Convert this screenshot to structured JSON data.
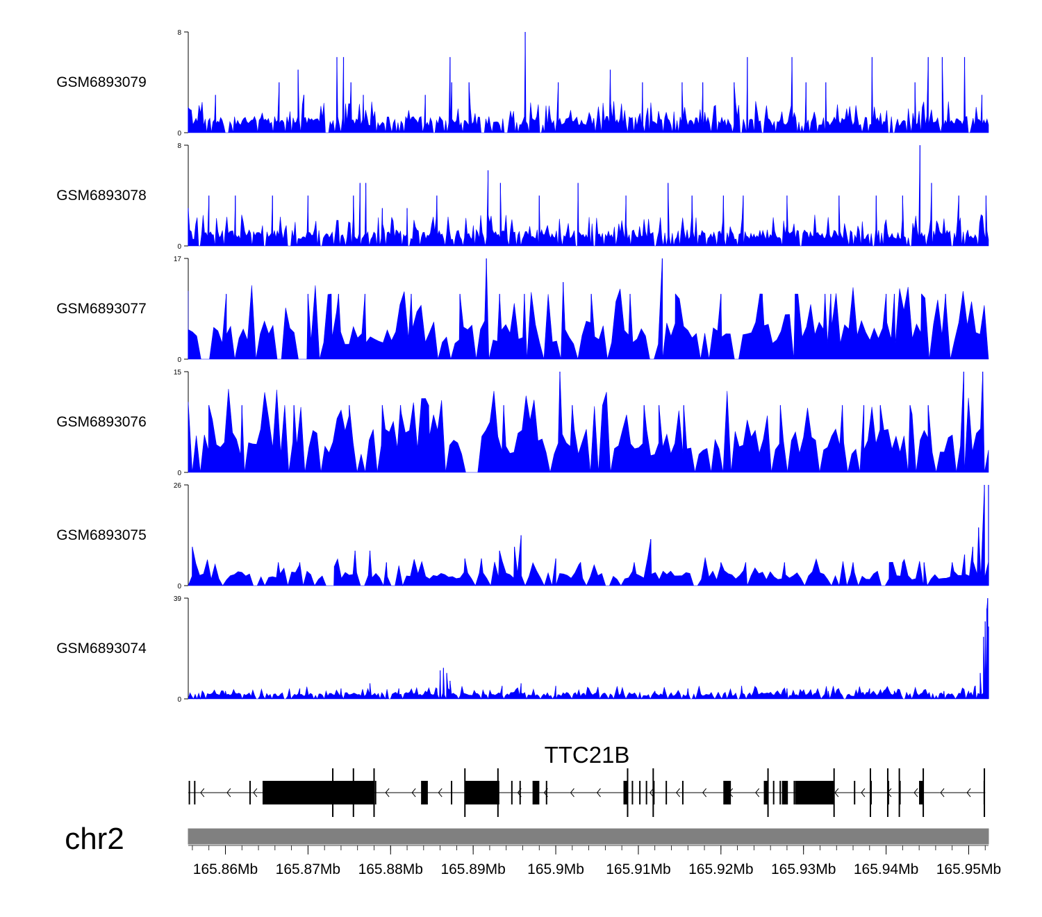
{
  "chart_data": {
    "type": "area",
    "chromosome": "chr2",
    "gene": "TTC21B",
    "x_range_mb": [
      165.8555,
      165.9524
    ],
    "x_ticks": [
      165.86,
      165.87,
      165.88,
      165.89,
      165.9,
      165.91,
      165.92,
      165.93,
      165.94,
      165.95
    ],
    "x_tick_labels": [
      "165.86Mb",
      "165.87Mb",
      "165.88Mb",
      "165.89Mb",
      "165.9Mb",
      "165.91Mb",
      "165.92Mb",
      "165.93Mb",
      "165.94Mb",
      "165.95Mb"
    ],
    "minor_tick_step_mb": 0.002,
    "color": "#0000ff",
    "tracks": [
      {
        "name": "GSM6893079",
        "ymin": 0,
        "ymax": 8,
        "ymin_label": "0",
        "ymax_label": "8",
        "density": 520,
        "base_level": 1,
        "peaks": [
          [
            165.8555,
            2
          ],
          [
            165.8588,
            3
          ],
          [
            165.8665,
            4
          ],
          [
            165.8688,
            5
          ],
          [
            165.8695,
            3
          ],
          [
            165.8735,
            6
          ],
          [
            165.8743,
            6
          ],
          [
            165.8752,
            4
          ],
          [
            165.8767,
            3
          ],
          [
            165.8842,
            3
          ],
          [
            165.8872,
            6
          ],
          [
            165.8874,
            4
          ],
          [
            165.8895,
            4
          ],
          [
            165.8963,
            8
          ],
          [
            165.9003,
            4
          ],
          [
            165.9066,
            5
          ],
          [
            165.9105,
            4
          ],
          [
            165.9153,
            4
          ],
          [
            165.9178,
            4
          ],
          [
            165.9216,
            4
          ],
          [
            165.9232,
            6
          ],
          [
            165.9286,
            6
          ],
          [
            165.9303,
            4
          ],
          [
            165.9327,
            4
          ],
          [
            165.9383,
            6
          ],
          [
            165.9435,
            4
          ],
          [
            165.9451,
            6
          ],
          [
            165.9468,
            6
          ],
          [
            165.9495,
            6
          ],
          [
            165.9516,
            3
          ]
        ]
      },
      {
        "name": "GSM6893078",
        "ymin": 0,
        "ymax": 8,
        "ymin_label": "0",
        "ymax_label": "8",
        "density": 540,
        "base_level": 1,
        "peaks": [
          [
            165.8555,
            3
          ],
          [
            165.858,
            4
          ],
          [
            165.8612,
            4
          ],
          [
            165.8657,
            4
          ],
          [
            165.87,
            4
          ],
          [
            165.8755,
            4
          ],
          [
            165.8763,
            5
          ],
          [
            165.877,
            5
          ],
          [
            165.879,
            3
          ],
          [
            165.882,
            3
          ],
          [
            165.8856,
            4
          ],
          [
            165.8918,
            6
          ],
          [
            165.8933,
            5
          ],
          [
            165.898,
            4
          ],
          [
            165.9027,
            5
          ],
          [
            165.9085,
            4
          ],
          [
            165.9136,
            5
          ],
          [
            165.9165,
            4
          ],
          [
            165.9203,
            4
          ],
          [
            165.9227,
            4
          ],
          [
            165.928,
            4
          ],
          [
            165.9343,
            4
          ],
          [
            165.9388,
            4
          ],
          [
            165.942,
            4
          ],
          [
            165.9441,
            8
          ],
          [
            165.9455,
            5
          ],
          [
            165.9488,
            4
          ],
          [
            165.9521,
            4
          ]
        ]
      },
      {
        "name": "GSM6893077",
        "ymin": 0,
        "ymax": 17,
        "ymin_label": "0",
        "ymax_label": "17",
        "density": 190,
        "base_level": 5,
        "peaks": [
          [
            165.8555,
            5
          ],
          [
            165.8601,
            11
          ],
          [
            165.87,
            11
          ],
          [
            165.8728,
            11
          ],
          [
            165.8737,
            11
          ],
          [
            165.8769,
            11
          ],
          [
            165.8825,
            11
          ],
          [
            165.8884,
            11
          ],
          [
            165.8916,
            17
          ],
          [
            165.8932,
            11
          ],
          [
            165.8962,
            11
          ],
          [
            165.9009,
            13
          ],
          [
            165.9043,
            11
          ],
          [
            165.909,
            11
          ],
          [
            165.9129,
            17
          ],
          [
            165.9145,
            11
          ],
          [
            165.92,
            11
          ],
          [
            165.925,
            11
          ],
          [
            165.929,
            11
          ],
          [
            165.9326,
            11
          ],
          [
            165.9333,
            11
          ],
          [
            165.94,
            11
          ],
          [
            165.941,
            11
          ],
          [
            165.9443,
            11
          ],
          [
            165.9472,
            11
          ]
        ]
      },
      {
        "name": "GSM6893076",
        "ymin": 0,
        "ymax": 15,
        "ymin_label": "0",
        "ymax_label": "15",
        "density": 200,
        "base_level": 5,
        "peaks": [
          [
            165.858,
            10
          ],
          [
            165.862,
            10
          ],
          [
            165.8683,
            10
          ],
          [
            165.875,
            10
          ],
          [
            165.879,
            10
          ],
          [
            165.8812,
            10
          ],
          [
            165.8828,
            10
          ],
          [
            165.8846,
            10
          ],
          [
            165.8937,
            10
          ],
          [
            165.9005,
            15
          ],
          [
            165.902,
            10
          ],
          [
            165.9107,
            10
          ],
          [
            165.9125,
            10
          ],
          [
            165.9155,
            10
          ],
          [
            165.9272,
            10
          ],
          [
            165.9347,
            10
          ],
          [
            165.9373,
            10
          ],
          [
            165.9393,
            10
          ],
          [
            165.9429,
            10
          ],
          [
            165.9451,
            10
          ],
          [
            165.9494,
            15
          ],
          [
            165.9517,
            15
          ]
        ]
      },
      {
        "name": "GSM6893075",
        "ymin": 0,
        "ymax": 26,
        "ymin_label": "0",
        "ymax_label": "26",
        "density": 210,
        "base_level": 3,
        "peaks": [
          [
            165.856,
            10
          ],
          [
            165.8664,
            6
          ],
          [
            165.869,
            6
          ],
          [
            165.8732,
            5
          ],
          [
            165.8757,
            9
          ],
          [
            165.8775,
            9
          ],
          [
            165.8795,
            6
          ],
          [
            165.889,
            7
          ],
          [
            165.891,
            7
          ],
          [
            165.8932,
            9
          ],
          [
            165.895,
            10
          ],
          [
            165.8958,
            13
          ],
          [
            165.9,
            7
          ],
          [
            165.903,
            6
          ],
          [
            165.9095,
            6
          ],
          [
            165.9115,
            12
          ],
          [
            165.918,
            6
          ],
          [
            165.92,
            6
          ],
          [
            165.923,
            6
          ],
          [
            165.9277,
            6
          ],
          [
            165.936,
            6
          ],
          [
            165.9404,
            6
          ],
          [
            165.942,
            6
          ],
          [
            165.9446,
            6
          ],
          [
            165.948,
            6
          ],
          [
            165.9495,
            8
          ],
          [
            165.9505,
            10
          ],
          [
            165.9512,
            15
          ],
          [
            165.9519,
            26
          ],
          [
            165.9524,
            26
          ]
        ]
      },
      {
        "name": "GSM6893074",
        "ymin": 0,
        "ymax": 39,
        "ymin_label": "0",
        "ymax_label": "39",
        "density": 460,
        "base_level": 2,
        "peaks": [
          [
            165.86,
            3
          ],
          [
            165.869,
            4
          ],
          [
            165.874,
            4
          ],
          [
            165.8775,
            6
          ],
          [
            165.881,
            4
          ],
          [
            165.8856,
            4
          ],
          [
            165.886,
            11
          ],
          [
            165.8864,
            12
          ],
          [
            165.8868,
            10
          ],
          [
            165.8872,
            7
          ],
          [
            165.8935,
            5
          ],
          [
            165.8958,
            6
          ],
          [
            165.9,
            5
          ],
          [
            165.904,
            4
          ],
          [
            165.912,
            3
          ],
          [
            165.916,
            4
          ],
          [
            165.9225,
            5
          ],
          [
            165.928,
            4
          ],
          [
            165.933,
            3
          ],
          [
            165.938,
            4
          ],
          [
            165.941,
            3
          ],
          [
            165.947,
            3
          ],
          [
            165.95,
            3
          ],
          [
            165.9508,
            5
          ],
          [
            165.9514,
            10
          ],
          [
            165.9518,
            24
          ],
          [
            165.952,
            30
          ],
          [
            165.9522,
            35
          ],
          [
            165.9523,
            39
          ],
          [
            165.9524,
            28
          ]
        ]
      }
    ],
    "gene_model": {
      "name": "TTC21B",
      "strand": "-",
      "start_mb": 165.8555,
      "end_mb": 165.952,
      "exons": [
        [
          165.85555,
          165.85565
        ],
        [
          165.8562,
          165.8563
        ],
        [
          165.8629,
          165.863
        ],
        [
          165.8645,
          165.878
        ],
        [
          165.8779,
          165.878
        ],
        [
          165.8781,
          165.8782
        ],
        [
          165.8837,
          165.8845
        ],
        [
          165.8873,
          165.8874
        ],
        [
          165.8891,
          165.893
        ],
        [
          165.889,
          165.8891
        ],
        [
          165.893,
          165.8931
        ],
        [
          165.8946,
          165.8947
        ],
        [
          165.8956,
          165.8957
        ],
        [
          165.8972,
          165.898
        ],
        [
          165.8988,
          165.8989
        ],
        [
          165.9082,
          165.9087
        ],
        [
          165.9092,
          165.9093
        ],
        [
          165.9101,
          165.9102
        ],
        [
          165.9109,
          165.911
        ],
        [
          165.9118,
          165.9119
        ],
        [
          165.9133,
          165.9134
        ],
        [
          165.9153,
          165.9154
        ],
        [
          165.9203,
          165.9212
        ],
        [
          165.9252,
          165.9257
        ],
        [
          165.9263,
          165.9264
        ],
        [
          165.9271,
          165.9272
        ],
        [
          165.9274,
          165.9281
        ],
        [
          165.9288,
          165.9289
        ],
        [
          165.929,
          165.9337
        ],
        [
          165.9361,
          165.9362
        ],
        [
          165.9381,
          165.9382
        ],
        [
          165.9402,
          165.9403
        ],
        [
          165.9416,
          165.9417
        ],
        [
          165.944,
          165.9445
        ],
        [
          165.9518,
          165.9519
        ]
      ],
      "thick_exons": [
        [
          165.8645,
          165.878
        ],
        [
          165.8837,
          165.8845
        ],
        [
          165.8891,
          165.893
        ],
        [
          165.8972,
          165.898
        ],
        [
          165.9082,
          165.9087
        ],
        [
          165.9203,
          165.9212
        ],
        [
          165.9252,
          165.9257
        ],
        [
          165.9274,
          165.9281
        ],
        [
          165.929,
          165.9337
        ],
        [
          165.944,
          165.9445
        ]
      ]
    }
  }
}
